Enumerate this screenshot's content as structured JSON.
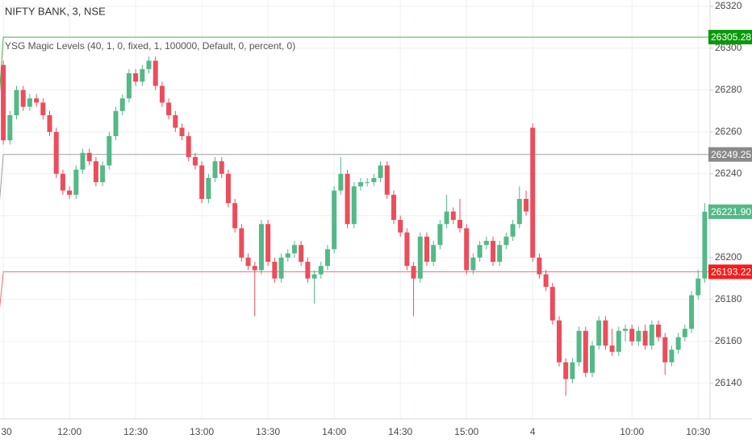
{
  "chart_data": {
    "type": "candlestick",
    "title": "NIFTY BANK, 3, NSE",
    "subtitle": "YSG Magic Levels (40, 1, 0, fixed, 1, 100000, Default, 0, percent, 0)",
    "up_color": "#53b987",
    "down_color": "#eb4d5c",
    "grid": true,
    "ylim": [
      26123,
      26323
    ],
    "yticks": [
      26140,
      26160,
      26180,
      26200,
      26220,
      26240,
      26260,
      26280,
      26300,
      26320
    ],
    "xlim": [
      -0.5,
      106.8
    ],
    "xticks": [
      {
        "value": 0,
        "label": "30"
      },
      {
        "value": 10,
        "label": "12:00"
      },
      {
        "value": 20,
        "label": "12:30"
      },
      {
        "value": 30,
        "label": "13:00"
      },
      {
        "value": 40,
        "label": "13:30"
      },
      {
        "value": 50,
        "label": "14:00"
      },
      {
        "value": 60,
        "label": "14:30"
      },
      {
        "value": 70,
        "label": "15:00"
      },
      {
        "value": 80,
        "label": "4"
      },
      {
        "value": 95,
        "label": "10:00"
      },
      {
        "value": 105,
        "label": "10:30"
      }
    ],
    "open": [
      26292,
      26256,
      26268,
      26280,
      26272,
      26276,
      26274,
      26268,
      26260,
      26240,
      26232,
      26230,
      26242,
      26250,
      26246,
      26236,
      26244,
      26258,
      26270,
      26276,
      26288,
      26284,
      26290,
      26294,
      26282,
      26274,
      26268,
      26262,
      26258,
      26248,
      26244,
      26228,
      26238,
      26246,
      26240,
      26226,
      26214,
      26200,
      26196,
      26194,
      26216,
      26198,
      26190,
      26200,
      26202,
      26206,
      26198,
      26190,
      26192,
      26196,
      26204,
      26232,
      26240,
      26216,
      26234,
      26236,
      26236,
      26238,
      26244,
      26230,
      26218,
      26212,
      26196,
      26190,
      26210,
      26198,
      26206,
      26216,
      26222,
      26218,
      26214,
      26194,
      26200,
      26206,
      26208,
      26198,
      26206,
      26210,
      26216,
      26228,
      26262,
      26200,
      26192,
      26186,
      26170,
      26150,
      26142,
      26150,
      26165,
      26145,
      26158,
      26170,
      26158,
      26155,
      26165,
      26166,
      26160,
      26165,
      26158,
      26168,
      26162,
      26150,
      26156,
      26162,
      26166,
      26182,
      26190
    ],
    "high": [
      26294,
      26270,
      26282,
      26282,
      26278,
      26278,
      26276,
      26270,
      26262,
      26242,
      26234,
      26244,
      26252,
      26252,
      26248,
      26246,
      26260,
      26272,
      26278,
      26290,
      26290,
      26292,
      26296,
      26296,
      26284,
      26276,
      26270,
      26264,
      26260,
      26250,
      26246,
      26240,
      26248,
      26248,
      26242,
      26228,
      26216,
      26202,
      26198,
      26218,
      26218,
      26200,
      26202,
      26204,
      26208,
      26208,
      26200,
      26194,
      26198,
      26206,
      26234,
      26248,
      26242,
      26236,
      26238,
      26238,
      26240,
      26246,
      26246,
      26232,
      26220,
      26214,
      26198,
      26212,
      26212,
      26208,
      26218,
      26230,
      26224,
      26228,
      26216,
      26202,
      26208,
      26210,
      26210,
      26208,
      26212,
      26218,
      26234,
      26232,
      26264,
      26202,
      26194,
      26188,
      26172,
      26152,
      26152,
      26167,
      26167,
      26160,
      26172,
      26172,
      26166,
      26167,
      26168,
      26168,
      26167,
      26168,
      26170,
      26170,
      26164,
      26158,
      26164,
      26168,
      26184,
      26194,
      26226
    ],
    "low": [
      26254,
      26254,
      26266,
      26270,
      26270,
      26272,
      26266,
      26258,
      26238,
      26230,
      26228,
      26228,
      26240,
      26244,
      26234,
      26234,
      26242,
      26256,
      26268,
      26274,
      26282,
      26282,
      26288,
      26280,
      26272,
      26266,
      26260,
      26256,
      26246,
      26242,
      26226,
      26226,
      26236,
      26238,
      26224,
      26212,
      26198,
      26194,
      26172,
      26192,
      26196,
      26188,
      26188,
      26198,
      26200,
      26196,
      26188,
      26178,
      26190,
      26194,
      26202,
      26230,
      26214,
      26214,
      26232,
      26234,
      26234,
      26236,
      26228,
      26216,
      26210,
      26194,
      26172,
      26188,
      26196,
      26196,
      26204,
      26214,
      26216,
      26212,
      26192,
      26192,
      26198,
      26204,
      26196,
      26196,
      26204,
      26208,
      26214,
      26220,
      26198,
      26190,
      26184,
      26168,
      26148,
      26134,
      26140,
      26148,
      26143,
      26143,
      26156,
      26156,
      26153,
      26153,
      26160,
      26158,
      26158,
      26156,
      26156,
      26160,
      26144,
      26148,
      26154,
      26160,
      26164,
      26180,
      26188
    ],
    "close": [
      26256,
      26268,
      26280,
      26272,
      26276,
      26274,
      26268,
      26260,
      26240,
      26232,
      26230,
      26242,
      26250,
      26246,
      26236,
      26244,
      26258,
      26270,
      26276,
      26288,
      26284,
      26290,
      26294,
      26282,
      26274,
      26268,
      26262,
      26258,
      26248,
      26244,
      26228,
      26238,
      26246,
      26240,
      26226,
      26214,
      26200,
      26196,
      26194,
      26216,
      26198,
      26190,
      26200,
      26202,
      26206,
      26198,
      26190,
      26192,
      26196,
      26204,
      26232,
      26240,
      26216,
      26234,
      26236,
      26236,
      26238,
      26244,
      26230,
      26218,
      26212,
      26196,
      26190,
      26210,
      26198,
      26206,
      26216,
      26222,
      26218,
      26214,
      26194,
      26200,
      26206,
      26208,
      26198,
      26206,
      26210,
      26216,
      26228,
      26222,
      26200,
      26192,
      26186,
      26170,
      26150,
      26142,
      26150,
      26165,
      26145,
      26158,
      26170,
      26158,
      26155,
      26165,
      26166,
      26160,
      26165,
      26158,
      26168,
      26162,
      26150,
      26156,
      26162,
      26166,
      26182,
      26190,
      26221.9
    ],
    "levels": [
      {
        "color": "#4caf50",
        "tag_color": "#089a08",
        "values": [
          26258,
          26305.28
        ]
      },
      {
        "color": "#9e9e9e",
        "tag_color": "#8a8a8a",
        "values": [
          26210,
          26249.25
        ]
      },
      {
        "color": "#f26d6d",
        "tag_color": "#f71c1c",
        "values": [
          26162,
          26193.22
        ]
      }
    ],
    "last_price": {
      "value": 26221.9,
      "label": "26221.90",
      "color": "#53b987"
    }
  }
}
